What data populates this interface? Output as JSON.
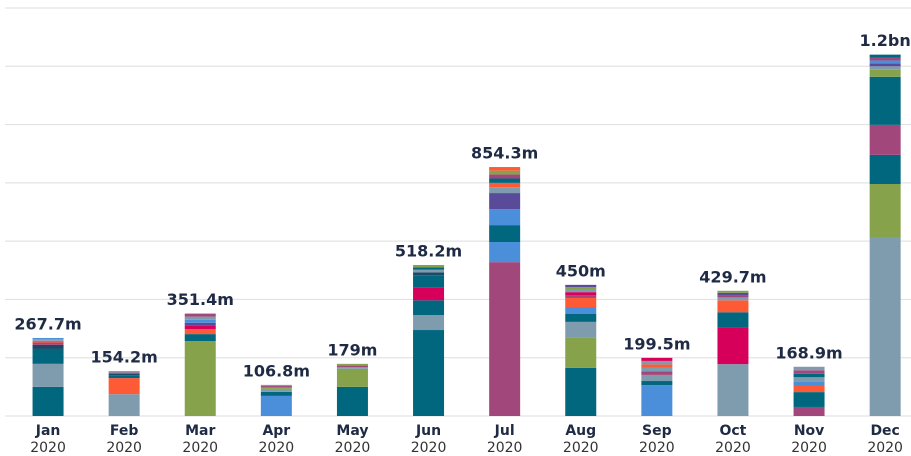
{
  "chart_data": {
    "type": "stacked-bar",
    "categories": [
      "Jan",
      "Feb",
      "Mar",
      "Apr",
      "May",
      "Jun",
      "Jul",
      "Aug",
      "Sep",
      "Oct",
      "Nov",
      "Dec"
    ],
    "years": [
      "2020",
      "2020",
      "2020",
      "2020",
      "2020",
      "2020",
      "2020",
      "2020",
      "2020",
      "2020",
      "2020",
      "2020"
    ],
    "ylim": [
      0,
      1400
    ],
    "yticks": [
      0,
      200,
      400,
      600,
      800,
      1000,
      1200,
      1400
    ],
    "grid": true,
    "totals": [
      267.7,
      154.2,
      351.4,
      106.8,
      179,
      518.2,
      854.3,
      450,
      199.5,
      429.7,
      168.9,
      1240
    ],
    "total_labels": [
      "267.7m",
      "154.2m",
      "351.4m",
      "106.8m",
      "179m",
      "518.2m",
      "854.3m",
      "450m",
      "199.5m",
      "429.7m",
      "168.9m",
      "1.2bn"
    ],
    "bars": [
      {
        "segments": [
          {
            "value": 100,
            "color": "#00677f"
          },
          {
            "value": 79,
            "color": "#7f9bae"
          },
          {
            "value": 51,
            "color": "#00677f"
          },
          {
            "value": 14,
            "color": "#1c4a66"
          },
          {
            "value": 8,
            "color": "#a2477c"
          },
          {
            "value": 6,
            "color": "#ff5a36"
          },
          {
            "value": 5,
            "color": "#7f9bae"
          },
          {
            "value": 4.7,
            "color": "#4b8fdb"
          }
        ]
      },
      {
        "segments": [
          {
            "value": 75,
            "color": "#7f9bae"
          },
          {
            "value": 55,
            "color": "#ff5a36"
          },
          {
            "value": 10,
            "color": "#00677f"
          },
          {
            "value": 5,
            "color": "#1c4a66"
          },
          {
            "value": 4,
            "color": "#a2477c"
          },
          {
            "value": 5.2,
            "color": "#7f9bae"
          }
        ]
      },
      {
        "segments": [
          {
            "value": 257,
            "color": "#86a24a"
          },
          {
            "value": 24,
            "color": "#00677f"
          },
          {
            "value": 17,
            "color": "#ff5a36"
          },
          {
            "value": 12,
            "color": "#d6005b"
          },
          {
            "value": 10,
            "color": "#5a4b9a"
          },
          {
            "value": 10,
            "color": "#4b8fdb"
          },
          {
            "value": 11,
            "color": "#7f9bae"
          },
          {
            "value": 10.4,
            "color": "#a2477c"
          }
        ]
      },
      {
        "segments": [
          {
            "value": 69,
            "color": "#4b8fdb"
          },
          {
            "value": 14,
            "color": "#00677f"
          },
          {
            "value": 10,
            "color": "#7f9bae"
          },
          {
            "value": 5,
            "color": "#86a24a"
          },
          {
            "value": 4.8,
            "color": "#a2477c"
          },
          {
            "value": 4,
            "color": "#7f9bae"
          }
        ]
      },
      {
        "segments": [
          {
            "value": 100,
            "color": "#00677f"
          },
          {
            "value": 62,
            "color": "#86a24a"
          },
          {
            "value": 6,
            "color": "#7f9bae"
          },
          {
            "value": 5,
            "color": "#a2477c"
          },
          {
            "value": 6,
            "color": "#86a24a"
          }
        ]
      },
      {
        "segments": [
          {
            "value": 295,
            "color": "#00677f"
          },
          {
            "value": 51,
            "color": "#7f9bae"
          },
          {
            "value": 51,
            "color": "#00677f"
          },
          {
            "value": 45,
            "color": "#d6005b"
          },
          {
            "value": 41,
            "color": "#00677f"
          },
          {
            "value": 10,
            "color": "#1c4a66"
          },
          {
            "value": 9,
            "color": "#7f9bae"
          },
          {
            "value": 8,
            "color": "#00677f"
          },
          {
            "value": 8.2,
            "color": "#86a24a"
          }
        ]
      },
      {
        "segments": [
          {
            "value": 528,
            "color": "#a2477c"
          },
          {
            "value": 69,
            "color": "#4b8fdb"
          },
          {
            "value": 58,
            "color": "#00677f"
          },
          {
            "value": 55,
            "color": "#4b8fdb"
          },
          {
            "value": 55,
            "color": "#5a4b9a"
          },
          {
            "value": 20,
            "color": "#7f9bae"
          },
          {
            "value": 15,
            "color": "#ff5a36"
          },
          {
            "value": 15,
            "color": "#00677f"
          },
          {
            "value": 14,
            "color": "#a2477c"
          },
          {
            "value": 13,
            "color": "#86a24a"
          },
          {
            "value": 12.3,
            "color": "#ff5a36"
          }
        ]
      },
      {
        "segments": [
          {
            "value": 165,
            "color": "#00677f"
          },
          {
            "value": 103,
            "color": "#86a24a"
          },
          {
            "value": 55,
            "color": "#7f9bae"
          },
          {
            "value": 27,
            "color": "#00677f"
          },
          {
            "value": 24,
            "color": "#4b8fdb"
          },
          {
            "value": 31,
            "color": "#ff5a36"
          },
          {
            "value": 10,
            "color": "#a2477c"
          },
          {
            "value": 10,
            "color": "#d6005b"
          },
          {
            "value": 9,
            "color": "#7f9bae"
          },
          {
            "value": 8,
            "color": "#86a24a"
          },
          {
            "value": 8,
            "color": "#5a4b9a"
          }
        ]
      },
      {
        "segments": [
          {
            "value": 106,
            "color": "#4b8fdb"
          },
          {
            "value": 14,
            "color": "#00677f"
          },
          {
            "value": 21,
            "color": "#7f9bae"
          },
          {
            "value": 12,
            "color": "#a2477c"
          },
          {
            "value": 12,
            "color": "#7f9bae"
          },
          {
            "value": 12,
            "color": "#ff5a36"
          },
          {
            "value": 12,
            "color": "#7f9bae"
          },
          {
            "value": 10.5,
            "color": "#d6005b"
          }
        ]
      },
      {
        "segments": [
          {
            "value": 178,
            "color": "#7f9bae"
          },
          {
            "value": 127,
            "color": "#d6005b"
          },
          {
            "value": 51,
            "color": "#00677f"
          },
          {
            "value": 41,
            "color": "#ff5a36"
          },
          {
            "value": 10,
            "color": "#7f9bae"
          },
          {
            "value": 8,
            "color": "#a2477c"
          },
          {
            "value": 8,
            "color": "#5a4b9a"
          },
          {
            "value": 6.7,
            "color": "#86a24a"
          }
        ]
      },
      {
        "segments": [
          {
            "value": 31,
            "color": "#a2477c"
          },
          {
            "value": 51,
            "color": "#00677f"
          },
          {
            "value": 21,
            "color": "#ff5a36"
          },
          {
            "value": 15,
            "color": "#4b8fdb"
          },
          {
            "value": 15,
            "color": "#7f9bae"
          },
          {
            "value": 12,
            "color": "#00677f"
          },
          {
            "value": 12,
            "color": "#a2477c"
          },
          {
            "value": 11.9,
            "color": "#7f9bae"
          }
        ]
      },
      {
        "segments": [
          {
            "value": 611,
            "color": "#7f9bae"
          },
          {
            "value": 185,
            "color": "#86a24a"
          },
          {
            "value": 100,
            "color": "#00677f"
          },
          {
            "value": 103,
            "color": "#a2477c"
          },
          {
            "value": 165,
            "color": "#00677f"
          },
          {
            "value": 24,
            "color": "#86a24a"
          },
          {
            "value": 12,
            "color": "#7f9bae"
          },
          {
            "value": 10,
            "color": "#5a4b9a"
          },
          {
            "value": 10,
            "color": "#4b8fdb"
          },
          {
            "value": 10,
            "color": "#a2477c"
          },
          {
            "value": 10,
            "color": "#00677f"
          }
        ]
      }
    ]
  }
}
